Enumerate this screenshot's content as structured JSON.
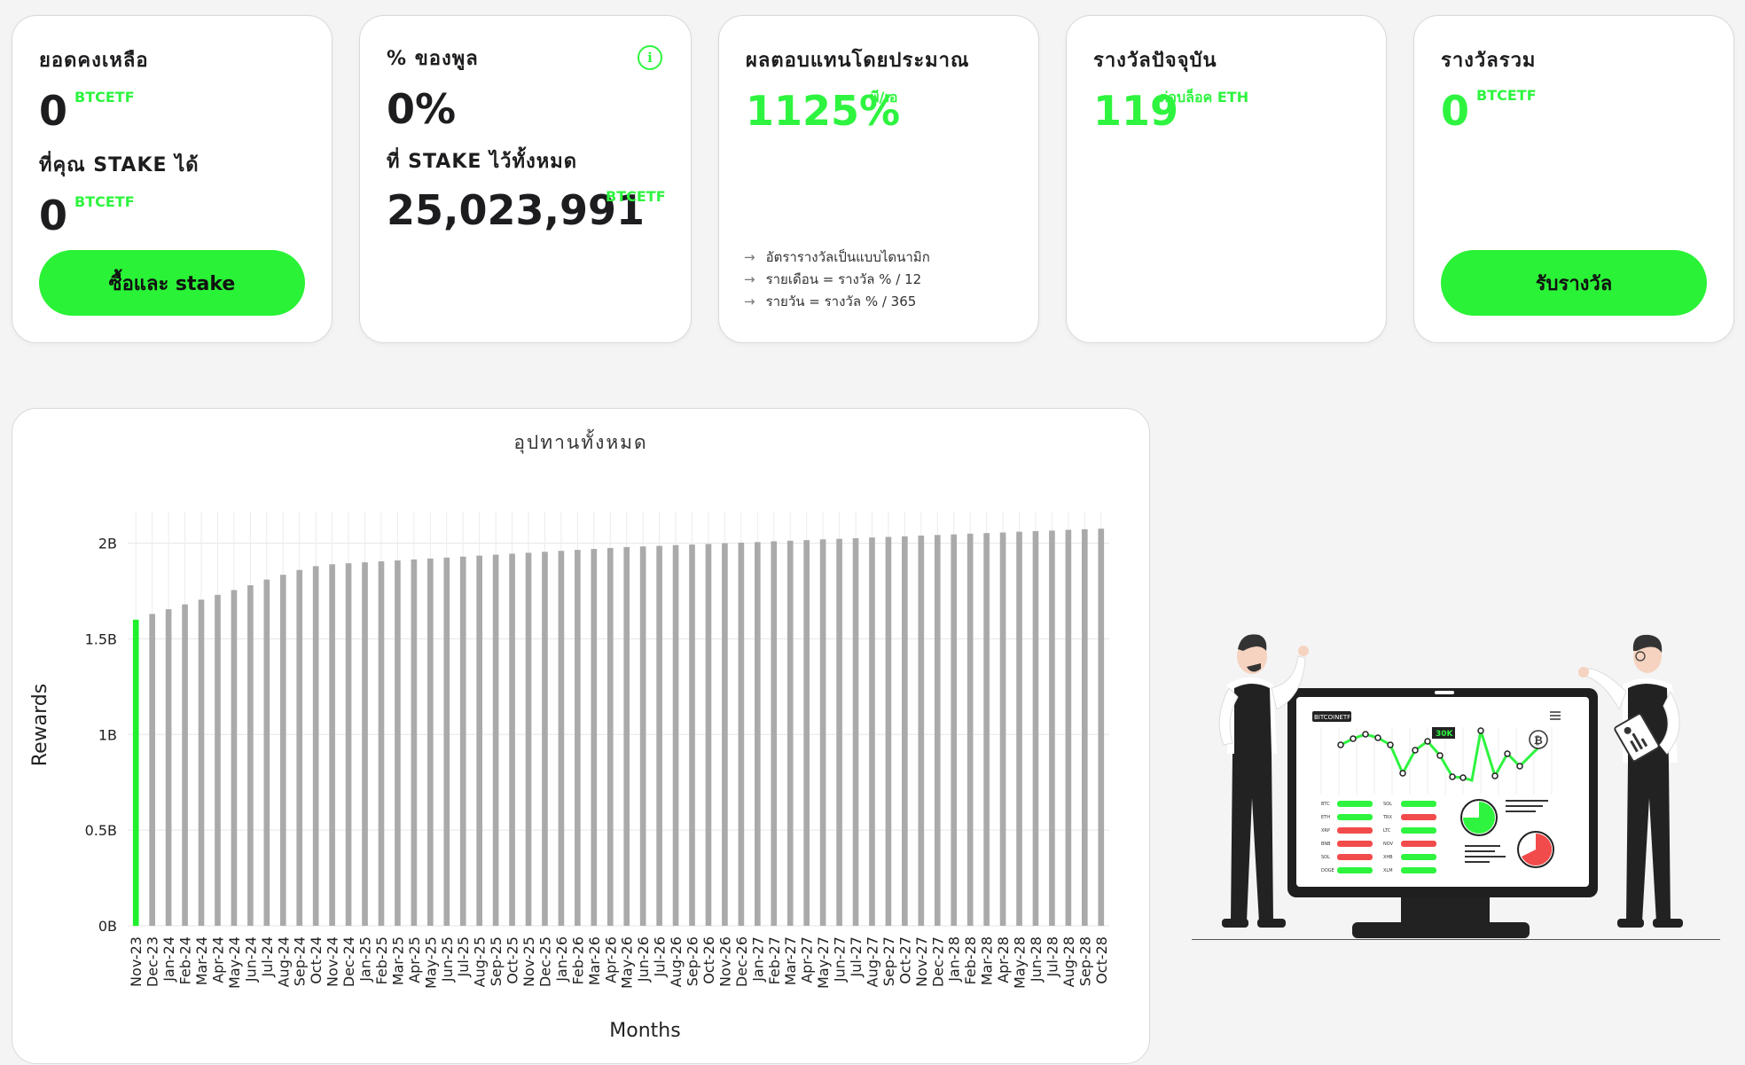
{
  "cards": {
    "balance": {
      "title": "ยอดคงเหลือ",
      "value": "0",
      "unit": "BTCETF",
      "stake_title": "ที่คุณ STAKE ได้",
      "stake_value": "0",
      "stake_unit": "BTCETF",
      "button": "ซื้อและ stake"
    },
    "pool": {
      "title": "% ของพูล",
      "value": "0%",
      "staked_title": "ที่ STAKE ไว้ทั้งหมด",
      "staked_value": "25,023,991",
      "staked_unit": "BTCETF",
      "info_icon": "info-icon"
    },
    "apy": {
      "title": "ผลตอบแทนโดยประมาณ",
      "value": "1125%",
      "unit": "พี/เอ",
      "notes": [
        "อัตรารางวัลเป็นแบบไดนามิก",
        "รายเดือน = รางวัล % / 12",
        "รายวัน = รางวัล % / 365"
      ]
    },
    "current_reward": {
      "title": "รางวัลปัจจุบัน",
      "value": "119",
      "unit": "ต่อบล็อค ETH"
    },
    "total_reward": {
      "title": "รางวัลรวม",
      "value": "0",
      "unit": "BTCETF",
      "button": "รับรางวัล"
    }
  },
  "colors": {
    "accent": "#2ef43f",
    "bar": "#aaaaaa",
    "highlight_bar": "#1ff02b"
  },
  "chart_data": {
    "type": "bar",
    "title": "อุปทานทั้งหมด",
    "xlabel": "Months",
    "ylabel": "Rewards",
    "ylim": [
      0,
      2100000000
    ],
    "yticks": [
      {
        "value": 0,
        "label": "0B"
      },
      {
        "value": 500000000,
        "label": "0.5B"
      },
      {
        "value": 1000000000,
        "label": "1B"
      },
      {
        "value": 1500000000,
        "label": "1.5B"
      },
      {
        "value": 2000000000,
        "label": "2B"
      }
    ],
    "grid": true,
    "highlight_index": 0,
    "categories": [
      "Nov-23",
      "Dec-23",
      "Jan-24",
      "Feb-24",
      "Mar-24",
      "Apr-24",
      "May-24",
      "Jun-24",
      "Jul-24",
      "Aug-24",
      "Sep-24",
      "Oct-24",
      "Nov-24",
      "Dec-24",
      "Jan-25",
      "Feb-25",
      "Mar-25",
      "Apr-25",
      "May-25",
      "Jun-25",
      "Jul-25",
      "Aug-25",
      "Sep-25",
      "Oct-25",
      "Nov-25",
      "Dec-25",
      "Jan-26",
      "Feb-26",
      "Mar-26",
      "Apr-26",
      "May-26",
      "Jun-26",
      "Jul-26",
      "Aug-26",
      "Sep-26",
      "Oct-26",
      "Nov-26",
      "Dec-26",
      "Jan-27",
      "Feb-27",
      "Mar-27",
      "Apr-27",
      "May-27",
      "Jun-27",
      "Jul-27",
      "Aug-27",
      "Sep-27",
      "Oct-27",
      "Nov-27",
      "Dec-27",
      "Jan-28",
      "Feb-28",
      "Mar-28",
      "Apr-28",
      "May-28",
      "Jun-28",
      "Jul-28",
      "Aug-28",
      "Sep-28",
      "Oct-28"
    ],
    "values": [
      1600000000,
      1630000000,
      1655000000,
      1680000000,
      1705000000,
      1730000000,
      1755000000,
      1780000000,
      1810000000,
      1835000000,
      1860000000,
      1880000000,
      1890000000,
      1895000000,
      1900000000,
      1905000000,
      1910000000,
      1915000000,
      1920000000,
      1925000000,
      1930000000,
      1935000000,
      1940000000,
      1945000000,
      1950000000,
      1955000000,
      1960000000,
      1965000000,
      1970000000,
      1975000000,
      1980000000,
      1983000000,
      1986000000,
      1990000000,
      1993000000,
      1996000000,
      2000000000,
      2003000000,
      2006000000,
      2010000000,
      2013000000,
      2016000000,
      2020000000,
      2023000000,
      2026000000,
      2030000000,
      2033000000,
      2036000000,
      2040000000,
      2043000000,
      2046000000,
      2050000000,
      2053000000,
      2056000000,
      2060000000,
      2063000000,
      2066000000,
      2070000000,
      2073000000,
      2076000000
    ]
  },
  "illustration": {
    "screen_brand": "BITCOINETF",
    "screen_badge": "30K",
    "coins_left": [
      "BTC",
      "ETH",
      "XRP",
      "BNB",
      "SOL",
      "DOGE"
    ],
    "coins_right": [
      "SOL",
      "TRX",
      "LTC",
      "NOV",
      "XHB",
      "XLM"
    ]
  }
}
